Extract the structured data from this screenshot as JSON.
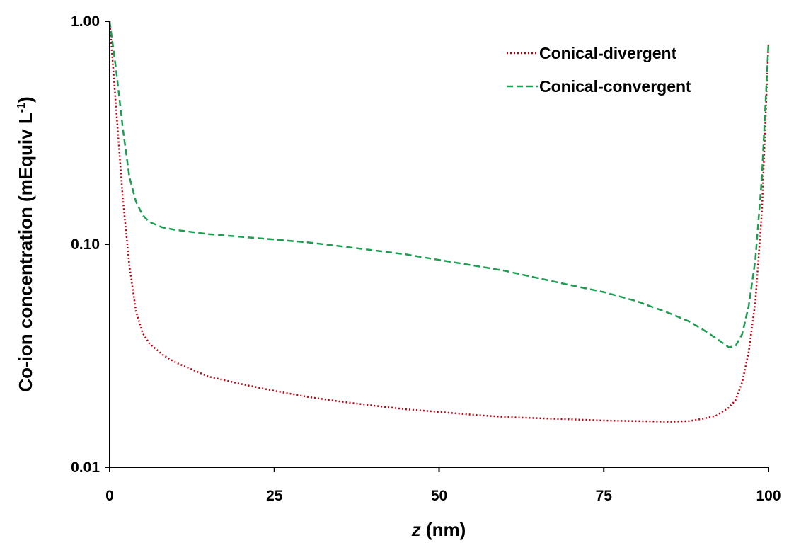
{
  "chart_data": {
    "type": "line",
    "title": "",
    "xlabel": {
      "var": "z",
      "unit": " (nm)"
    },
    "ylabel": {
      "main": "Co-ion concentration  (mEquiv L",
      "sup": "-1",
      "end": ")"
    },
    "x_ticks": [
      "0",
      "25",
      "50",
      "75",
      "100"
    ],
    "x_tick_values": [
      0,
      25,
      50,
      75,
      100
    ],
    "y_ticks": [
      "0.01",
      "0.10",
      "1.00"
    ],
    "y_tick_values": [
      0.01,
      0.1,
      1.0
    ],
    "xlim": [
      0,
      100
    ],
    "ylim": [
      0.01,
      1.0
    ],
    "y_scale": "log",
    "grid": false,
    "legend_position": "top-right",
    "series": [
      {
        "name": "Conical-divergent",
        "color": "#c0000f",
        "line_style": "dotted",
        "points": [
          [
            0,
            1.0
          ],
          [
            1,
            0.4
          ],
          [
            2,
            0.16
          ],
          [
            3,
            0.08
          ],
          [
            4,
            0.05
          ],
          [
            5,
            0.04
          ],
          [
            6,
            0.036
          ],
          [
            8,
            0.032
          ],
          [
            10,
            0.0295
          ],
          [
            15,
            0.0255
          ],
          [
            20,
            0.0236
          ],
          [
            25,
            0.022
          ],
          [
            30,
            0.0207
          ],
          [
            35,
            0.0197
          ],
          [
            40,
            0.0189
          ],
          [
            45,
            0.0182
          ],
          [
            50,
            0.0177
          ],
          [
            55,
            0.0172
          ],
          [
            60,
            0.0168
          ],
          [
            65,
            0.0166
          ],
          [
            70,
            0.0164
          ],
          [
            75,
            0.0162
          ],
          [
            80,
            0.0161
          ],
          [
            85,
            0.016
          ],
          [
            88,
            0.0161
          ],
          [
            90,
            0.0165
          ],
          [
            92,
            0.017
          ],
          [
            94,
            0.0185
          ],
          [
            95,
            0.02
          ],
          [
            96,
            0.024
          ],
          [
            97,
            0.033
          ],
          [
            98,
            0.055
          ],
          [
            99,
            0.14
          ],
          [
            100,
            0.8
          ]
        ]
      },
      {
        "name": "Conical-convergent",
        "color": "#1a9e50",
        "line_style": "dashed",
        "points": [
          [
            0,
            1.0
          ],
          [
            1,
            0.6
          ],
          [
            2,
            0.33
          ],
          [
            3,
            0.2
          ],
          [
            4,
            0.155
          ],
          [
            5,
            0.135
          ],
          [
            6,
            0.126
          ],
          [
            8,
            0.119
          ],
          [
            10,
            0.116
          ],
          [
            15,
            0.111
          ],
          [
            20,
            0.108
          ],
          [
            25,
            0.105
          ],
          [
            30,
            0.102
          ],
          [
            35,
            0.098
          ],
          [
            40,
            0.094
          ],
          [
            45,
            0.09
          ],
          [
            50,
            0.085
          ],
          [
            55,
            0.0805
          ],
          [
            60,
            0.076
          ],
          [
            65,
            0.0705
          ],
          [
            70,
            0.0655
          ],
          [
            75,
            0.061
          ],
          [
            80,
            0.0555
          ],
          [
            85,
            0.049
          ],
          [
            88,
            0.045
          ],
          [
            90,
            0.0415
          ],
          [
            92,
            0.038
          ],
          [
            94,
            0.0345
          ],
          [
            95,
            0.035
          ],
          [
            96,
            0.0395
          ],
          [
            97,
            0.053
          ],
          [
            98,
            0.085
          ],
          [
            99,
            0.2
          ],
          [
            100,
            0.8
          ]
        ]
      }
    ]
  }
}
